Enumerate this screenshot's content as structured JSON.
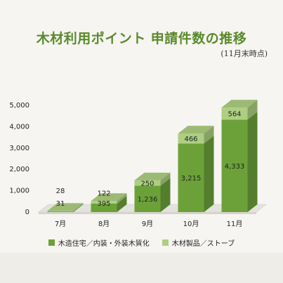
{
  "title": "木材利用ポイント 申請件数の推移",
  "note": "(11月末時点)",
  "chart_data": {
    "type": "bar",
    "stacked": true,
    "categories": [
      "7月",
      "8月",
      "9月",
      "10月",
      "11月"
    ],
    "series": [
      {
        "name": "木造住宅／内装・外装木質化",
        "values": [
          31,
          395,
          1236,
          3215,
          4333
        ],
        "color": "#6ca13a"
      },
      {
        "name": "木材製品／ストーブ",
        "values": [
          28,
          122,
          250,
          466,
          564
        ],
        "color": "#aecf82"
      }
    ],
    "ylim": [
      0,
      5000
    ],
    "yticks": [
      "0",
      "1,000",
      "2,000",
      "3,000",
      "4,000",
      "5,000"
    ],
    "data_labels": {
      "bottom": [
        "31",
        "395",
        "1,236",
        "3,215",
        "4,333"
      ],
      "top": [
        "28",
        "122",
        "250",
        "466",
        "564"
      ]
    },
    "grid": false,
    "legend_position": "bottom"
  }
}
